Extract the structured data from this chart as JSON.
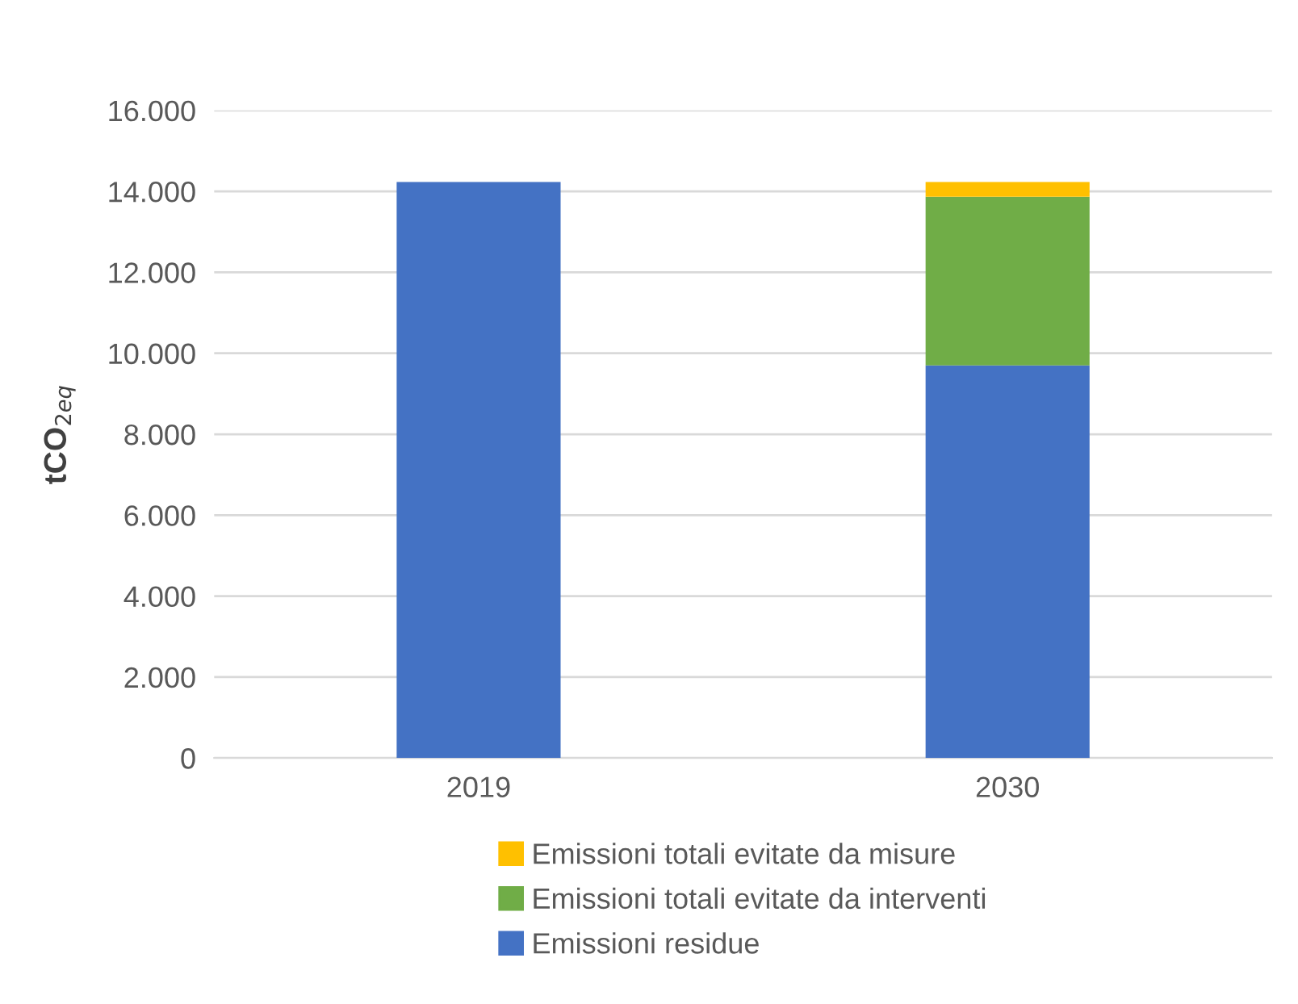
{
  "chart_data": {
    "type": "bar",
    "stacked": true,
    "ylabel": "tCO$_{2eq}$",
    "categories": [
      "2019",
      "2030"
    ],
    "series": [
      {
        "name": "Emissioni residue",
        "color": "#4472c4",
        "values": [
          14230,
          9700
        ]
      },
      {
        "name": "Emissioni totali evitate da interventi",
        "color": "#70ad47",
        "values": [
          null,
          4170
        ]
      },
      {
        "name": "Emissioni totali evitate da misure",
        "color": "#ffc000",
        "values": [
          null,
          360
        ]
      }
    ],
    "ylim": [
      0,
      16000
    ],
    "yticks": [
      {
        "value": 0,
        "label": "0"
      },
      {
        "value": 2000,
        "label": "2.000"
      },
      {
        "value": 4000,
        "label": "4.000"
      },
      {
        "value": 6000,
        "label": "6.000"
      },
      {
        "value": 8000,
        "label": "8.000"
      },
      {
        "value": 10000,
        "label": "10.000"
      },
      {
        "value": 12000,
        "label": "12.000"
      },
      {
        "value": 14000,
        "label": "14.000"
      },
      {
        "value": 16000,
        "label": "16.000"
      }
    ],
    "grid": "y",
    "legend": "bottom"
  }
}
